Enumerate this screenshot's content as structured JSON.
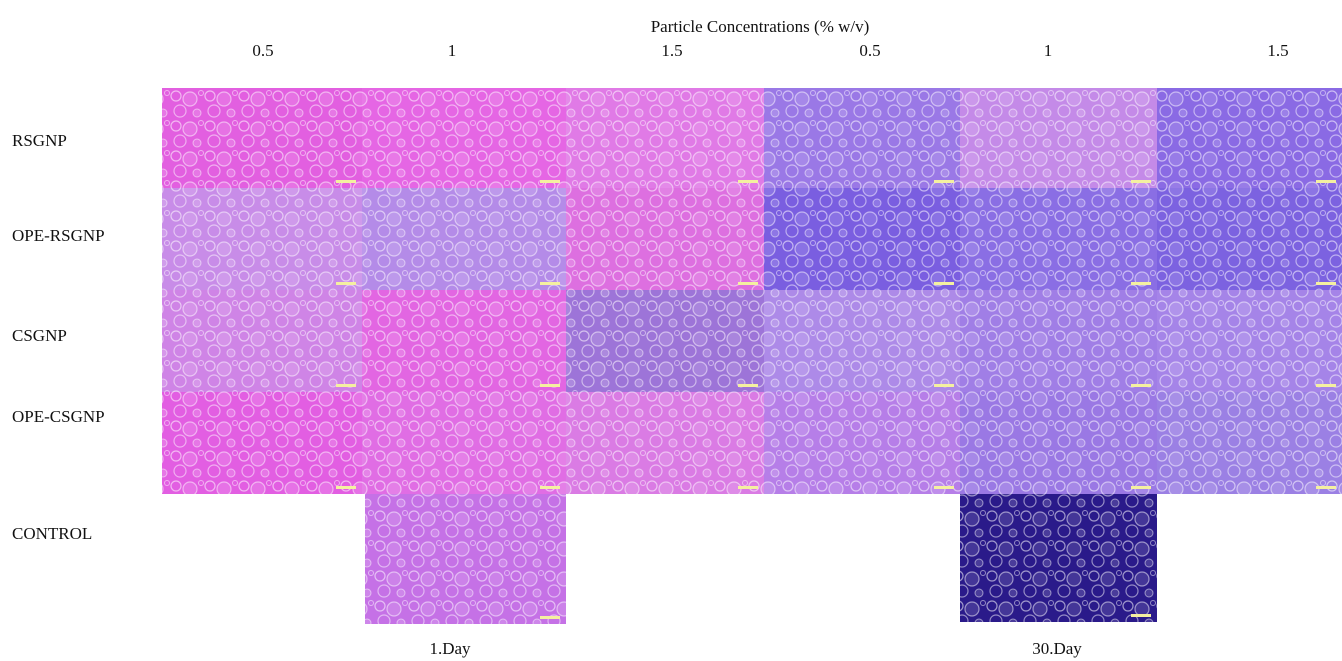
{
  "header": {
    "title": "Particle Concentrations (% w/v)"
  },
  "columns": [
    "0.5",
    "1",
    "1.5",
    "0.5",
    "1",
    "1.5"
  ],
  "rows": [
    "RSGNP",
    "OPE-RSGNP",
    "CSGNP",
    "OPE-CSGNP",
    "CONTROL"
  ],
  "footer": [
    "1.Day",
    "30.Day"
  ]
}
